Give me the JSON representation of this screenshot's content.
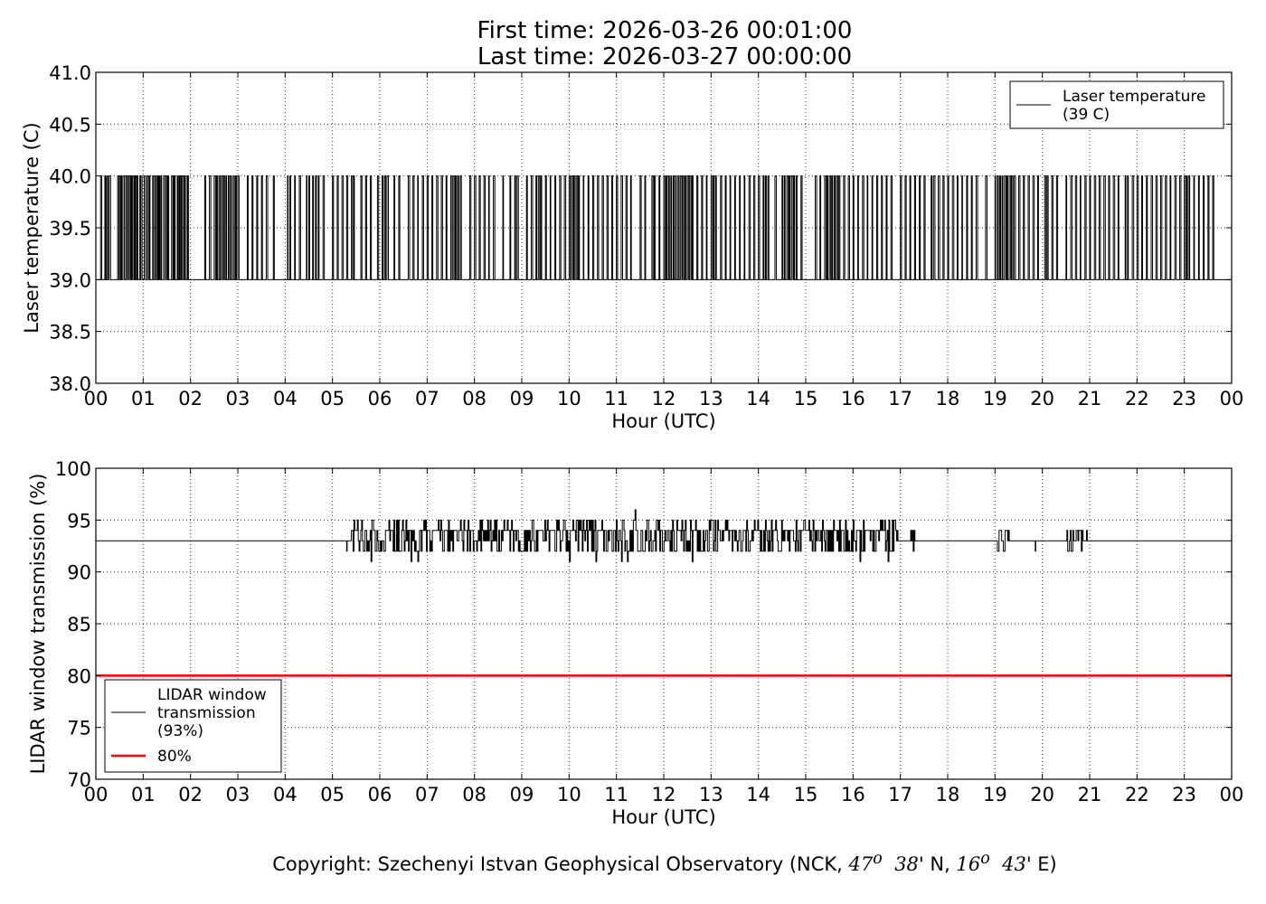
{
  "figure": {
    "title_line1": "First time: 2026-03-26 00:01:00",
    "title_line2": "Last time: 2026-03-27 00:00:00",
    "copyright_text": "Copyright: Szechenyi Istvan Geophysical Observatory (NCK,",
    "copyright_lat": "47",
    "copyright_lat_sup": "o",
    "copyright_lat_min": "38",
    "copyright_lat_rest": "' N,",
    "copyright_lon": "16",
    "copyright_lon_sup": "o",
    "copyright_lon_min": "43",
    "copyright_lon_rest": "' E)"
  },
  "chart_data": [
    {
      "type": "line",
      "xlabel": "Hour (UTC)",
      "ylabel": "Laser temperature (C)",
      "xlim": [
        0,
        24
      ],
      "ylim": [
        38.0,
        41.0
      ],
      "x_ticks": [
        "00",
        "01",
        "02",
        "03",
        "04",
        "05",
        "06",
        "07",
        "08",
        "09",
        "10",
        "11",
        "12",
        "13",
        "14",
        "15",
        "16",
        "17",
        "18",
        "19",
        "20",
        "21",
        "22",
        "23",
        "00"
      ],
      "y_ticks": [
        "38.0",
        "38.5",
        "39.0",
        "39.5",
        "40.0",
        "40.5",
        "41.0"
      ],
      "grid": true,
      "legend_position": "top-right",
      "series": [
        {
          "name": "Laser temperature\n(39 C)",
          "color": "#000000",
          "baseline": 39.0,
          "spike_value": 40.0,
          "spike_start_hours": [
            0.1,
            0.19,
            0.23,
            0.28,
            0.46,
            0.5,
            0.53,
            0.57,
            0.63,
            0.67,
            0.7,
            0.74,
            0.78,
            0.81,
            0.84,
            0.87,
            0.93,
            0.95,
            1.02,
            1.08,
            1.13,
            1.2,
            1.25,
            1.3,
            1.33,
            1.37,
            1.43,
            1.47,
            1.5,
            1.52,
            1.6,
            1.64,
            1.66,
            1.72,
            1.76,
            1.78,
            1.82,
            1.86,
            1.91,
            1.94,
            2.3,
            2.4,
            2.5,
            2.55,
            2.6,
            2.65,
            2.7,
            2.75,
            2.8,
            2.85,
            2.9,
            2.95,
            3.0,
            3.2,
            3.3,
            3.4,
            3.5,
            3.6,
            3.75,
            4.05,
            4.1,
            4.2,
            4.3,
            4.45,
            4.5,
            4.58,
            4.64,
            4.7,
            4.8,
            5.0,
            5.1,
            5.2,
            5.3,
            5.4,
            5.45,
            5.6,
            5.7,
            5.8,
            5.95,
            6.05,
            6.1,
            6.15,
            6.3,
            6.4,
            6.6,
            6.7,
            6.8,
            6.9,
            7.0,
            7.1,
            7.2,
            7.3,
            7.4,
            7.5,
            7.55,
            7.6,
            7.65,
            7.7,
            7.9,
            8.0,
            8.1,
            8.2,
            8.3,
            8.4,
            8.6,
            8.75,
            8.85,
            8.9,
            9.1,
            9.2,
            9.3,
            9.35,
            9.4,
            9.5,
            9.6,
            9.7,
            9.8,
            9.9,
            10.0,
            10.05,
            10.1,
            10.15,
            10.2,
            10.3,
            10.4,
            10.5,
            10.6,
            10.7,
            10.8,
            10.9,
            11.0,
            11.1,
            11.2,
            11.3,
            11.5,
            11.6,
            11.75,
            11.8,
            11.9,
            12.0,
            12.05,
            12.1,
            12.15,
            12.2,
            12.25,
            12.3,
            12.35,
            12.4,
            12.45,
            12.5,
            12.55,
            12.6,
            12.7,
            12.8,
            12.9,
            13.0,
            13.05,
            13.1,
            13.2,
            13.3,
            13.4,
            13.5,
            13.6,
            13.7,
            13.8,
            13.9,
            14.0,
            14.1,
            14.15,
            14.2,
            14.35,
            14.5,
            14.55,
            14.6,
            14.65,
            14.7,
            14.75,
            14.8,
            14.9,
            15.2,
            15.3,
            15.4,
            15.45,
            15.5,
            15.55,
            15.6,
            15.65,
            15.7,
            15.8,
            15.9,
            16.0,
            16.1,
            16.2,
            16.3,
            16.4,
            16.5,
            16.6,
            16.7,
            16.8,
            17.0,
            17.1,
            17.2,
            17.3,
            17.4,
            17.5,
            17.65,
            17.7,
            17.8,
            17.9,
            18.0,
            18.1,
            18.2,
            18.3,
            18.4,
            18.5,
            18.6,
            18.8,
            19.0,
            19.05,
            19.1,
            19.15,
            19.2,
            19.25,
            19.3,
            19.35,
            19.4,
            19.5,
            19.6,
            19.7,
            19.8,
            19.9,
            20.05,
            20.1,
            20.2,
            20.3,
            20.5,
            20.6,
            20.7,
            20.8,
            20.9,
            21.0,
            21.1,
            21.2,
            21.3,
            21.4,
            21.5,
            21.6,
            21.75,
            21.8,
            21.9,
            22.0,
            22.1,
            22.2,
            22.3,
            22.4,
            22.5,
            22.6,
            22.7,
            22.8,
            22.9,
            23.0,
            23.05,
            23.1,
            23.2,
            23.3,
            23.4,
            23.5,
            23.6
          ]
        }
      ]
    },
    {
      "type": "line",
      "xlabel": "Hour (UTC)",
      "ylabel": "LIDAR window transmission (%)",
      "xlim": [
        0,
        24
      ],
      "ylim": [
        70,
        100
      ],
      "x_ticks": [
        "00",
        "01",
        "02",
        "03",
        "04",
        "05",
        "06",
        "07",
        "08",
        "09",
        "10",
        "11",
        "12",
        "13",
        "14",
        "15",
        "16",
        "17",
        "18",
        "19",
        "20",
        "21",
        "22",
        "23",
        "00"
      ],
      "y_ticks": [
        "70",
        "75",
        "80",
        "85",
        "90",
        "95",
        "100"
      ],
      "grid": true,
      "legend_position": "bottom-left",
      "series": [
        {
          "name": "LIDAR window\ntransmission\n(93%)",
          "color": "#000000",
          "baseline": 93,
          "noisy_segments": [
            {
              "start": 5.3,
              "end": 5.3,
              "amplitude": 1
            },
            {
              "start": 5.4,
              "end": 16.95,
              "amplitude": 2
            },
            {
              "start": 17.2,
              "end": 17.35,
              "amplitude": 1
            },
            {
              "start": 19.05,
              "end": 19.3,
              "amplitude": 1
            },
            {
              "start": 19.85,
              "end": 19.9,
              "amplitude": 1
            },
            {
              "start": 20.5,
              "end": 20.95,
              "amplitude": 1
            }
          ],
          "notable_values": [
            {
              "x": 11.4,
              "y": 96
            },
            {
              "x": 10.0,
              "y": 91
            },
            {
              "x": 6.8,
              "y": 91
            },
            {
              "x": 12.6,
              "y": 91
            },
            {
              "x": 16.15,
              "y": 91
            }
          ]
        },
        {
          "name": "80%",
          "color": "#ff0000",
          "constant": 80
        }
      ]
    }
  ]
}
